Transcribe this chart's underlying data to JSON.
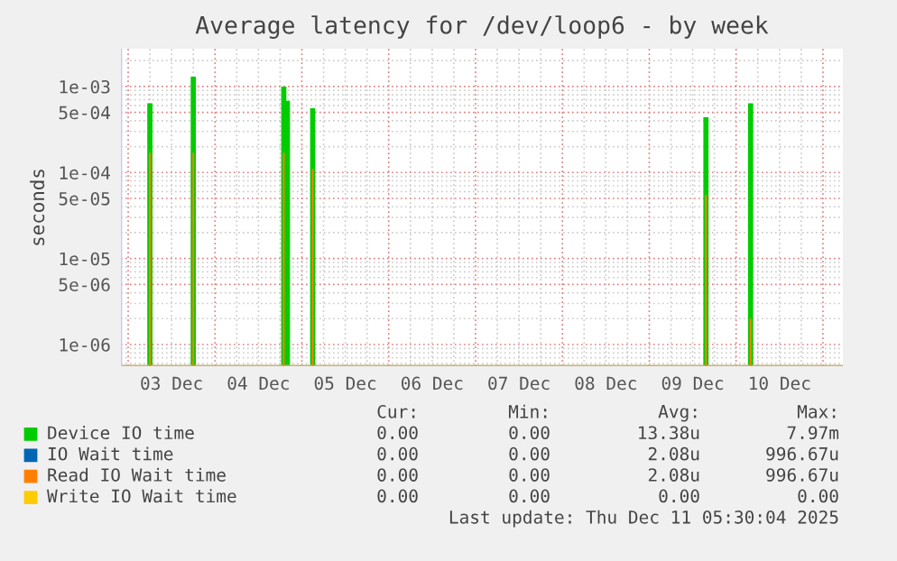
{
  "chart_data": {
    "type": "bar",
    "title": "Average latency for /dev/loop6 - by week",
    "ylabel": "seconds",
    "x": [
      "2025-12-03T06:00",
      "2025-12-03T18:00",
      "2025-12-04T19:00",
      "2025-12-04T20:00",
      "2025-12-05T03:00",
      "2025-12-09T15:40",
      "2025-12-10T04:00"
    ],
    "series": [
      {
        "name": "Device IO time",
        "color": "#00cc00",
        "values": [
          0.00064,
          0.0013,
          0.001,
          0.00068,
          0.00056,
          0.00044,
          0.00064
        ]
      },
      {
        "name": "IO Wait time",
        "color": "#0066b3",
        "values": [
          null,
          null,
          null,
          null,
          null,
          null,
          null
        ]
      },
      {
        "name": "Read IO Wait time",
        "color": "#ff8000",
        "values": [
          0.00017,
          0.00017,
          0.00017,
          null,
          0.00011,
          5.5e-05,
          2e-06
        ]
      },
      {
        "name": "Write IO Wait time",
        "color": "#ffcc00",
        "values": [
          null,
          null,
          null,
          null,
          null,
          null,
          null
        ]
      }
    ],
    "log": "y",
    "ylim": [
      5.6e-07,
      0.00275
    ],
    "yticks": [
      {
        "value": 0.001,
        "label": "1e-03"
      },
      {
        "value": 0.0005,
        "label": "5e-04"
      },
      {
        "value": 0.0001,
        "label": "1e-04"
      },
      {
        "value": 5e-05,
        "label": "5e-05"
      },
      {
        "value": 1e-05,
        "label": "1e-05"
      },
      {
        "value": 5e-06,
        "label": "5e-06"
      },
      {
        "value": 1e-06,
        "label": "1e-06"
      }
    ],
    "xlim": [
      "2025-12-02T22:00",
      "2025-12-11T05:30"
    ],
    "xticks": [
      {
        "value": "2025-12-03T12:00",
        "label": "03 Dec"
      },
      {
        "value": "2025-12-04T12:00",
        "label": "04 Dec"
      },
      {
        "value": "2025-12-05T12:00",
        "label": "05 Dec"
      },
      {
        "value": "2025-12-06T12:00",
        "label": "06 Dec"
      },
      {
        "value": "2025-12-07T12:00",
        "label": "07 Dec"
      },
      {
        "value": "2025-12-08T12:00",
        "label": "08 Dec"
      },
      {
        "value": "2025-12-09T12:00",
        "label": "09 Dec"
      },
      {
        "value": "2025-12-10T12:00",
        "label": "10 Dec"
      }
    ],
    "grid": true,
    "legend": "bottom",
    "annotations": [
      "Cur:",
      "Min:",
      "Avg:",
      "Max:",
      "0.00",
      "0.00",
      "13.38u",
      "7.97m",
      "0.00",
      "0.00",
      "2.08u",
      "996.67u",
      "0.00",
      "0.00",
      "2.08u",
      "996.67u",
      "0.00",
      "0.00",
      "0.00",
      "0.00",
      "Last update: Thu Dec 11 05:30:04 2025"
    ]
  }
}
